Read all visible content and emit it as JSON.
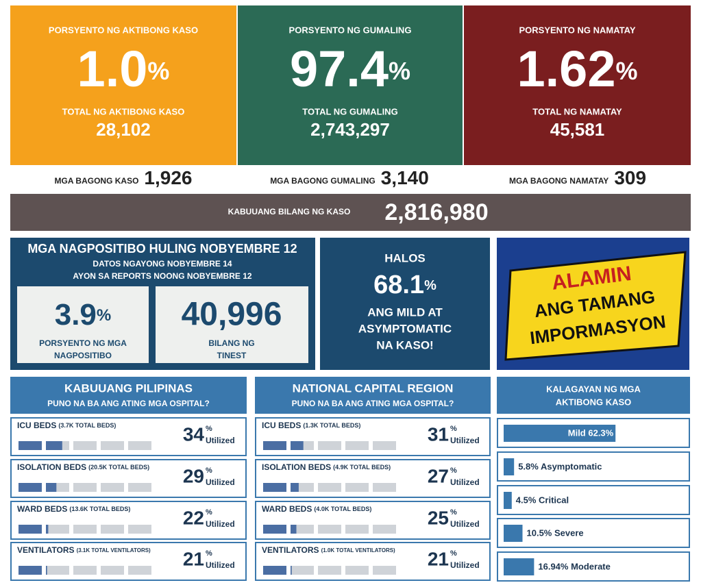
{
  "summary": [
    {
      "title": "PORSYENTO NG AKTIBONG KASO",
      "percent": "1.0",
      "total_label": "TOTAL NG AKTIBONG KASO",
      "total": "28,102",
      "color": "#f5a11c"
    },
    {
      "title": "PORSYENTO NG GUMALING",
      "percent": "97.4",
      "total_label": "TOTAL NG GUMALING",
      "total": "2,743,297",
      "color": "#2b6a55"
    },
    {
      "title": "PORSYENTO NG NAMATAY",
      "percent": "1.62",
      "total_label": "TOTAL NG NAMATAY",
      "total": "45,581",
      "color": "#7a1e1f"
    }
  ],
  "percent_sign": "%",
  "new_cases": [
    {
      "label": "MGA BAGONG KASO",
      "value": "1,926"
    },
    {
      "label": "MGA BAGONG GUMALING",
      "value": "3,140"
    },
    {
      "label": "MGA BAGONG NAMATAY",
      "value": "309"
    }
  ],
  "total_cases": {
    "label": "KABUUANG BILANG NG KASO",
    "value": "2,816,980"
  },
  "positivity": {
    "title": "MGA NAGPOSITIBO HULING NOBYEMBRE 12",
    "subtitle": [
      "DATOS NGAYONG NOBYEMBRE 14",
      "AYON SA REPORTS NOONG NOBYEMBRE 12"
    ],
    "rate": "3.9",
    "rate_label": [
      "PORSYENTO NG MGA",
      "NAGPOSITIBO"
    ],
    "tested": "40,996",
    "tested_label": [
      "BILANG NG",
      "TINEST"
    ]
  },
  "mild": {
    "top": "HALOS",
    "value": "68.1",
    "lines": [
      "ANG MILD AT",
      "ASYMPTOMATIC",
      "NA KASO!"
    ]
  },
  "banner": {
    "lines": [
      "ALAMIN",
      "ANG TAMANG",
      "IMPORMASYON"
    ]
  },
  "hospitals": [
    {
      "title": "KABUUANG PILIPINAS",
      "subtitle": "PUNO NA BA ANG ATING MGA OSPITAL?",
      "rows": [
        {
          "label": "ICU BEDS",
          "total": "(3.7K TOTAL BEDS)",
          "utilization": 34
        },
        {
          "label": "ISOLATION BEDS",
          "total": "(20.5K TOTAL BEDS)",
          "utilization": 29
        },
        {
          "label": "WARD BEDS",
          "total": "(13.6K TOTAL BEDS)",
          "utilization": 22
        },
        {
          "label": "VENTILATORS",
          "total": "(3.1K TOTAL VENTILATORS)",
          "utilization": 21
        }
      ]
    },
    {
      "title": "NATIONAL CAPITAL REGION",
      "subtitle": "PUNO NA BA ANG ATING MGA OSPITAL?",
      "rows": [
        {
          "label": "ICU BEDS",
          "total": "(1.3K TOTAL BEDS)",
          "utilization": 31
        },
        {
          "label": "ISOLATION BEDS",
          "total": "(4.9K TOTAL BEDS)",
          "utilization": 27
        },
        {
          "label": "WARD BEDS",
          "total": "(4.0K TOTAL BEDS)",
          "utilization": 25
        },
        {
          "label": "VENTILATORS",
          "total": "(1.0K TOTAL VENTILATORS)",
          "utilization": 21
        }
      ]
    }
  ],
  "utilized_label": "Utilized",
  "status": {
    "title": [
      "KALAGAYAN NG MGA",
      "AKTIBONG KASO"
    ],
    "color": "#3a78ad",
    "items": [
      {
        "value": 62.3,
        "label": "Mild 62.3%"
      },
      {
        "value": 5.8,
        "label": "5.8% Asymptomatic"
      },
      {
        "value": 4.5,
        "label": "4.5% Critical"
      },
      {
        "value": 10.5,
        "label": "10.5% Severe"
      },
      {
        "value": 16.94,
        "label": "16.94% Moderate"
      }
    ]
  }
}
